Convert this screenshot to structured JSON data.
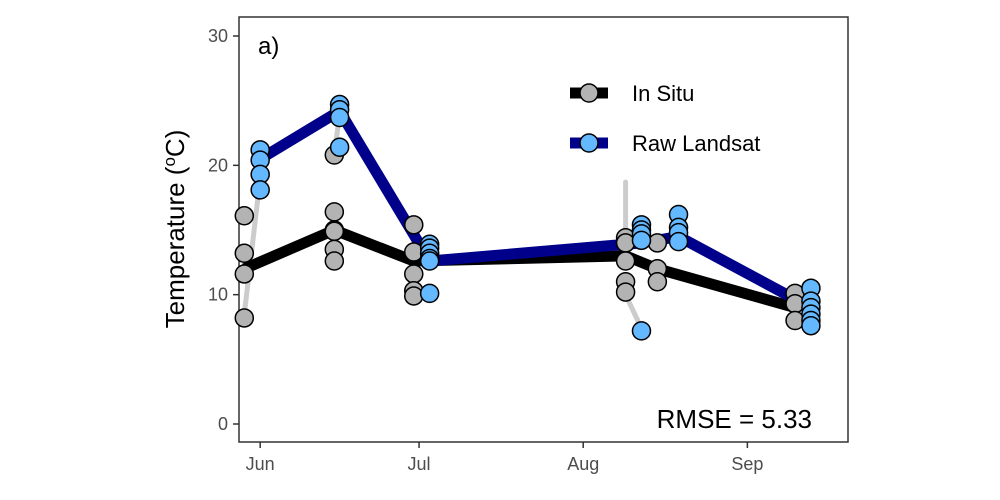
{
  "chart_data": {
    "type": "line",
    "title": "",
    "panel_label": "a)",
    "xlabel": "",
    "ylabel": "Temperature (°C)",
    "ylabel_parts": {
      "text": "Temperature (",
      "degree": "o",
      "unit": "C)"
    },
    "ylim": [
      0,
      30
    ],
    "yticks": [
      0,
      10,
      20,
      30
    ],
    "xlim": [
      "2000-05-28",
      "2000-09-20"
    ],
    "xticks": [
      {
        "date": "2000-06-01",
        "label": "Jun"
      },
      {
        "date": "2000-07-01",
        "label": "Jul"
      },
      {
        "date": "2000-08-01",
        "label": "Aug"
      },
      {
        "date": "2000-09-01",
        "label": "Sep"
      }
    ],
    "grid": false,
    "legend_position": "top-right",
    "annotation": "RMSE = 5.33",
    "series": [
      {
        "name": "In Situ",
        "line_color": "#000000",
        "point_color": "#b3b3b3",
        "mean_line": [
          {
            "date": "2000-05-29",
            "y": 12.0
          },
          {
            "date": "2000-06-15",
            "y": 15.0
          },
          {
            "date": "2000-06-30",
            "y": 12.6
          },
          {
            "date": "2000-08-09",
            "y": 13.0
          },
          {
            "date": "2000-08-15",
            "y": 12.0
          },
          {
            "date": "2000-09-10",
            "y": 9.0
          }
        ],
        "points": [
          {
            "date": "2000-05-29",
            "y": 16.1
          },
          {
            "date": "2000-05-29",
            "y": 13.2
          },
          {
            "date": "2000-05-29",
            "y": 11.6
          },
          {
            "date": "2000-05-29",
            "y": 8.2
          },
          {
            "date": "2000-06-15",
            "y": 20.8
          },
          {
            "date": "2000-06-15",
            "y": 16.4
          },
          {
            "date": "2000-06-15",
            "y": 15.0
          },
          {
            "date": "2000-06-15",
            "y": 14.9
          },
          {
            "date": "2000-06-15",
            "y": 13.5
          },
          {
            "date": "2000-06-15",
            "y": 12.6
          },
          {
            "date": "2000-06-30",
            "y": 15.4
          },
          {
            "date": "2000-06-30",
            "y": 13.3
          },
          {
            "date": "2000-06-30",
            "y": 11.6
          },
          {
            "date": "2000-06-30",
            "y": 10.3
          },
          {
            "date": "2000-06-30",
            "y": 9.9
          },
          {
            "date": "2000-08-09",
            "y": 14.4
          },
          {
            "date": "2000-08-09",
            "y": 14.0
          },
          {
            "date": "2000-08-09",
            "y": 12.6
          },
          {
            "date": "2000-08-09",
            "y": 11.0
          },
          {
            "date": "2000-08-09",
            "y": 10.2
          },
          {
            "date": "2000-08-15",
            "y": 14.0
          },
          {
            "date": "2000-08-15",
            "y": 12.0
          },
          {
            "date": "2000-08-15",
            "y": 11.0
          },
          {
            "date": "2000-09-10",
            "y": 10.1
          },
          {
            "date": "2000-09-10",
            "y": 9.3
          },
          {
            "date": "2000-09-10",
            "y": 8.0
          }
        ]
      },
      {
        "name": "Raw Landsat",
        "line_color": "#00008b",
        "point_color": "#63b8ff",
        "mean_line": [
          {
            "date": "2000-06-01",
            "y": 20.5
          },
          {
            "date": "2000-06-16",
            "y": 24.2
          },
          {
            "date": "2000-07-03",
            "y": 12.6
          },
          {
            "date": "2000-08-12",
            "y": 14.0
          },
          {
            "date": "2000-08-19",
            "y": 14.5
          },
          {
            "date": "2000-09-13",
            "y": 9.0
          }
        ],
        "points": [
          {
            "date": "2000-06-01",
            "y": 21.2
          },
          {
            "date": "2000-06-01",
            "y": 20.4
          },
          {
            "date": "2000-06-01",
            "y": 19.3
          },
          {
            "date": "2000-06-01",
            "y": 18.1
          },
          {
            "date": "2000-06-16",
            "y": 24.7
          },
          {
            "date": "2000-06-16",
            "y": 24.3
          },
          {
            "date": "2000-06-16",
            "y": 23.7
          },
          {
            "date": "2000-06-16",
            "y": 21.4
          },
          {
            "date": "2000-07-03",
            "y": 13.9
          },
          {
            "date": "2000-07-03",
            "y": 13.6
          },
          {
            "date": "2000-07-03",
            "y": 13.2
          },
          {
            "date": "2000-07-03",
            "y": 12.8
          },
          {
            "date": "2000-07-03",
            "y": 12.6
          },
          {
            "date": "2000-07-03",
            "y": 10.1
          },
          {
            "date": "2000-08-12",
            "y": 15.4
          },
          {
            "date": "2000-08-12",
            "y": 15.0
          },
          {
            "date": "2000-08-12",
            "y": 14.7
          },
          {
            "date": "2000-08-12",
            "y": 14.2
          },
          {
            "date": "2000-08-12",
            "y": 7.2
          },
          {
            "date": "2000-08-19",
            "y": 16.2
          },
          {
            "date": "2000-08-19",
            "y": 15.2
          },
          {
            "date": "2000-08-19",
            "y": 14.8
          },
          {
            "date": "2000-08-19",
            "y": 14.1
          },
          {
            "date": "2000-09-13",
            "y": 10.5
          },
          {
            "date": "2000-09-13",
            "y": 9.5
          },
          {
            "date": "2000-09-13",
            "y": 9.0
          },
          {
            "date": "2000-09-13",
            "y": 8.5
          },
          {
            "date": "2000-09-13",
            "y": 8.0
          },
          {
            "date": "2000-09-13",
            "y": 7.6
          }
        ]
      }
    ],
    "connector_color": "#cccccc",
    "connectors": [
      [
        {
          "date": "2000-05-29",
          "y": 8.5
        },
        {
          "date": "2000-06-01",
          "y": 19.0
        }
      ],
      [
        {
          "date": "2000-06-15",
          "y": 20.8
        },
        {
          "date": "2000-06-16",
          "y": 24.0
        }
      ],
      [
        {
          "date": "2000-08-09",
          "y": 10.0
        },
        {
          "date": "2000-08-12",
          "y": 7.4
        }
      ],
      [
        {
          "date": "2000-08-09",
          "y": 18.7
        },
        {
          "date": "2000-08-09",
          "y": 15.0
        }
      ]
    ]
  }
}
